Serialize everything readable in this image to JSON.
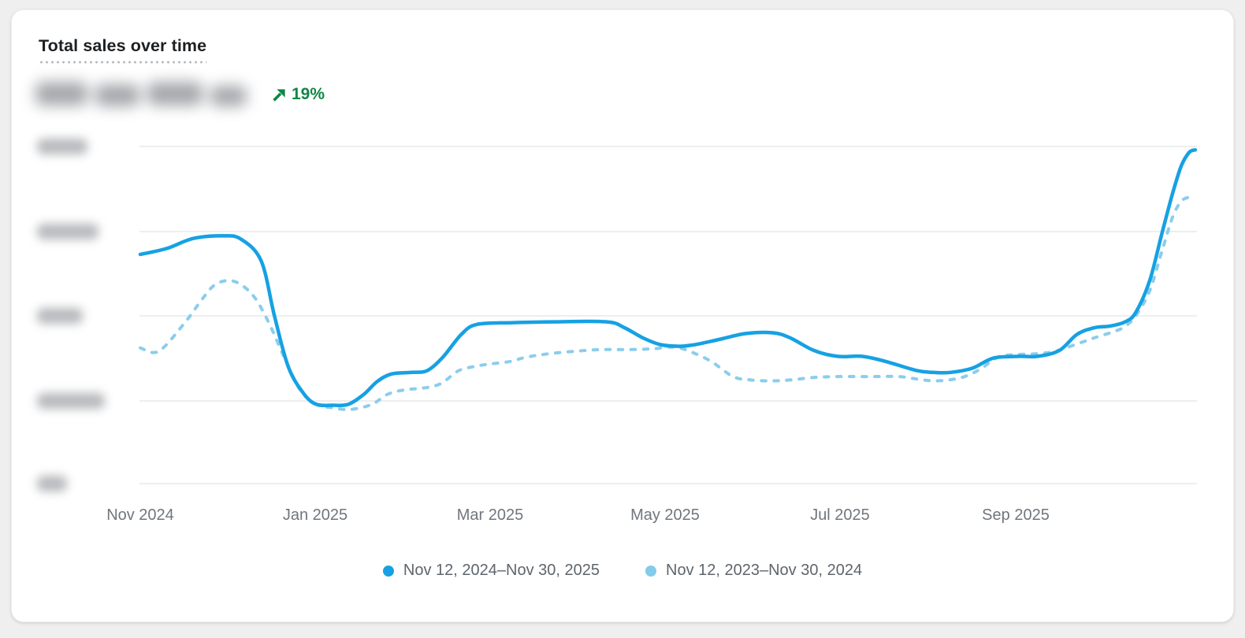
{
  "card": {
    "title": "Total sales over time",
    "total_value_blurred": true,
    "delta": {
      "direction": "up",
      "label": "19%",
      "color": "#0e8745"
    }
  },
  "chart_data": {
    "type": "line",
    "title": "Total sales over time",
    "x_tick_labels": [
      "Nov 2024",
      "Jan 2025",
      "Mar 2025",
      "May 2025",
      "Jul 2025",
      "Sep 2025"
    ],
    "x_unit": "months since Nov 2024 tick",
    "xlim": [
      0,
      12.03
    ],
    "y_axis_labels_blurred": true,
    "y_unit": "gridline intervals above bottom axis (labels unreadable)",
    "ylim": [
      0,
      4
    ],
    "grid": true,
    "legend_position": "bottom",
    "series": [
      {
        "name": "Nov 12, 2024–Nov 30, 2025",
        "style": "solid",
        "color": "#16a1e3",
        "points": [
          [
            0,
            2.72
          ],
          [
            0.3,
            2.79
          ],
          [
            0.61,
            2.91
          ],
          [
            0.95,
            2.94
          ],
          [
            1.15,
            2.9
          ],
          [
            1.38,
            2.64
          ],
          [
            1.53,
            1.99
          ],
          [
            1.69,
            1.38
          ],
          [
            1.87,
            1.06
          ],
          [
            2.01,
            0.94
          ],
          [
            2.19,
            0.93
          ],
          [
            2.37,
            0.94
          ],
          [
            2.55,
            1.06
          ],
          [
            2.7,
            1.21
          ],
          [
            2.86,
            1.3
          ],
          [
            3.09,
            1.32
          ],
          [
            3.27,
            1.34
          ],
          [
            3.45,
            1.5
          ],
          [
            3.66,
            1.77
          ],
          [
            3.84,
            1.89
          ],
          [
            4.26,
            1.91
          ],
          [
            4.71,
            1.92
          ],
          [
            5.32,
            1.92
          ],
          [
            5.52,
            1.85
          ],
          [
            5.73,
            1.73
          ],
          [
            5.93,
            1.65
          ],
          [
            6.15,
            1.63
          ],
          [
            6.33,
            1.65
          ],
          [
            6.6,
            1.71
          ],
          [
            6.9,
            1.78
          ],
          [
            7.21,
            1.79
          ],
          [
            7.41,
            1.73
          ],
          [
            7.68,
            1.58
          ],
          [
            7.95,
            1.51
          ],
          [
            8.23,
            1.51
          ],
          [
            8.5,
            1.45
          ],
          [
            8.86,
            1.34
          ],
          [
            9.04,
            1.32
          ],
          [
            9.24,
            1.32
          ],
          [
            9.49,
            1.37
          ],
          [
            9.73,
            1.49
          ],
          [
            10.03,
            1.51
          ],
          [
            10.23,
            1.51
          ],
          [
            10.48,
            1.58
          ],
          [
            10.68,
            1.77
          ],
          [
            10.88,
            1.85
          ],
          [
            11.06,
            1.87
          ],
          [
            11.23,
            1.92
          ],
          [
            11.35,
            2.03
          ],
          [
            11.51,
            2.41
          ],
          [
            11.65,
            2.97
          ],
          [
            11.77,
            3.44
          ],
          [
            11.87,
            3.77
          ],
          [
            11.96,
            3.93
          ],
          [
            12.03,
            3.96
          ]
        ]
      },
      {
        "name": "Nov 12, 2023–Nov 30, 2024",
        "style": "dashed",
        "color": "#8bcdec",
        "points": [
          [
            0,
            1.61
          ],
          [
            0.21,
            1.57
          ],
          [
            0.5,
            1.9
          ],
          [
            0.7,
            2.18
          ],
          [
            0.84,
            2.35
          ],
          [
            1.0,
            2.41
          ],
          [
            1.15,
            2.36
          ],
          [
            1.31,
            2.2
          ],
          [
            1.47,
            1.9
          ],
          [
            1.65,
            1.48
          ],
          [
            1.83,
            1.1
          ],
          [
            2.01,
            0.94
          ],
          [
            2.19,
            0.9
          ],
          [
            2.4,
            0.88
          ],
          [
            2.64,
            0.94
          ],
          [
            2.82,
            1.06
          ],
          [
            3.0,
            1.11
          ],
          [
            3.18,
            1.13
          ],
          [
            3.32,
            1.15
          ],
          [
            3.45,
            1.2
          ],
          [
            3.63,
            1.34
          ],
          [
            3.81,
            1.39
          ],
          [
            3.99,
            1.42
          ],
          [
            4.22,
            1.45
          ],
          [
            4.4,
            1.5
          ],
          [
            4.65,
            1.54
          ],
          [
            4.95,
            1.57
          ],
          [
            5.25,
            1.59
          ],
          [
            5.55,
            1.59
          ],
          [
            5.86,
            1.6
          ],
          [
            6.0,
            1.62
          ],
          [
            6.15,
            1.61
          ],
          [
            6.31,
            1.55
          ],
          [
            6.51,
            1.45
          ],
          [
            6.76,
            1.27
          ],
          [
            6.96,
            1.23
          ],
          [
            7.19,
            1.22
          ],
          [
            7.41,
            1.23
          ],
          [
            7.68,
            1.26
          ],
          [
            7.95,
            1.27
          ],
          [
            8.32,
            1.27
          ],
          [
            8.65,
            1.27
          ],
          [
            8.86,
            1.24
          ],
          [
            9.04,
            1.22
          ],
          [
            9.22,
            1.23
          ],
          [
            9.4,
            1.27
          ],
          [
            9.58,
            1.36
          ],
          [
            9.78,
            1.5
          ],
          [
            9.98,
            1.53
          ],
          [
            10.21,
            1.54
          ],
          [
            10.43,
            1.57
          ],
          [
            10.66,
            1.65
          ],
          [
            10.88,
            1.73
          ],
          [
            11.09,
            1.8
          ],
          [
            11.22,
            1.86
          ],
          [
            11.35,
            1.99
          ],
          [
            11.51,
            2.29
          ],
          [
            11.65,
            2.76
          ],
          [
            11.77,
            3.16
          ],
          [
            11.87,
            3.35
          ],
          [
            11.96,
            3.4
          ],
          [
            12.03,
            3.42
          ]
        ]
      }
    ]
  },
  "legend": {
    "items": [
      {
        "label": "Nov 12, 2024–Nov 30, 2025",
        "color": "#16a1e3"
      },
      {
        "label": "Nov 12, 2023–Nov 30, 2024",
        "color": "#82cbe9"
      }
    ]
  },
  "colors": {
    "current_period_line": "#16a1e3",
    "previous_period_line": "#8bcdec",
    "delta_green": "#0e8745",
    "gridline": "#e7e8ea",
    "axis_label": "#70767d",
    "card_background": "#ffffff",
    "page_background": "#efeff0"
  }
}
